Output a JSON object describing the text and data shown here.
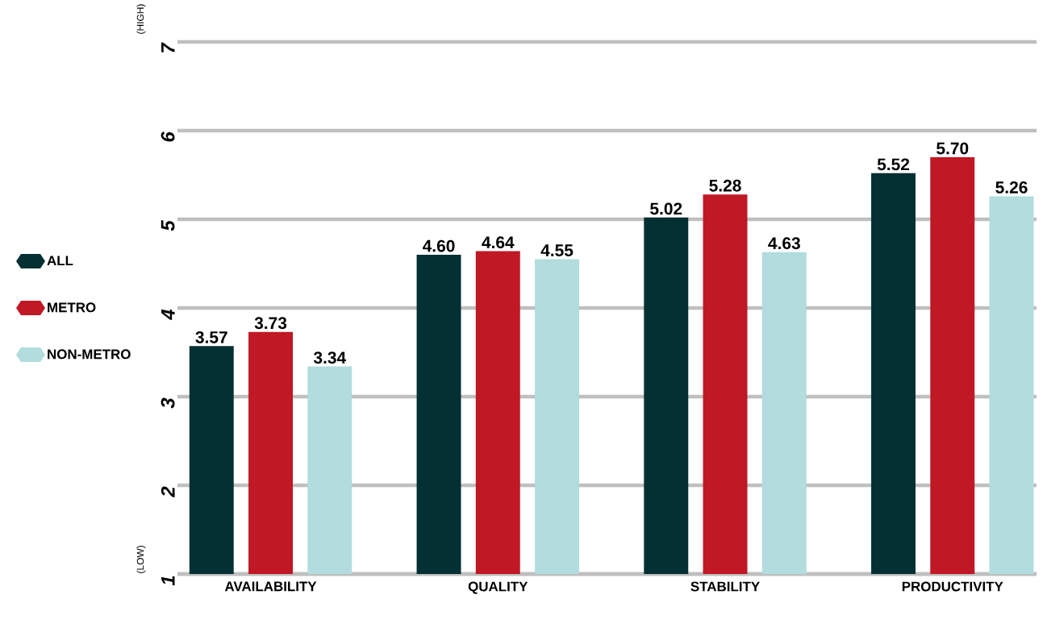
{
  "chart_data": {
    "type": "bar",
    "categories": [
      "AVAILABILITY",
      "QUALITY",
      "STABILITY",
      "PRODUCTIVITY"
    ],
    "series": [
      {
        "name": "ALL",
        "color": "#033033",
        "values": [
          3.57,
          4.6,
          5.02,
          5.52
        ],
        "value_labels": [
          "3.57",
          "4.60",
          "5.02",
          "5.52"
        ]
      },
      {
        "name": "METRO",
        "color": "#c01824",
        "values": [
          3.73,
          4.64,
          5.28,
          5.7
        ],
        "value_labels": [
          "3.73",
          "4.64",
          "5.28",
          "5.70"
        ]
      },
      {
        "name": "NON-METRO",
        "color": "#b2dcdd",
        "values": [
          3.34,
          4.55,
          4.63,
          5.26
        ],
        "value_labels": [
          "3.34",
          "4.55",
          "4.63",
          "5.26"
        ]
      }
    ],
    "ylim": [
      1,
      7
    ],
    "yticks": [
      1,
      2,
      3,
      4,
      5,
      6,
      7
    ],
    "grid": "y",
    "legend": "left",
    "annotations": [
      "(LOW)",
      "(HIGH)"
    ]
  }
}
